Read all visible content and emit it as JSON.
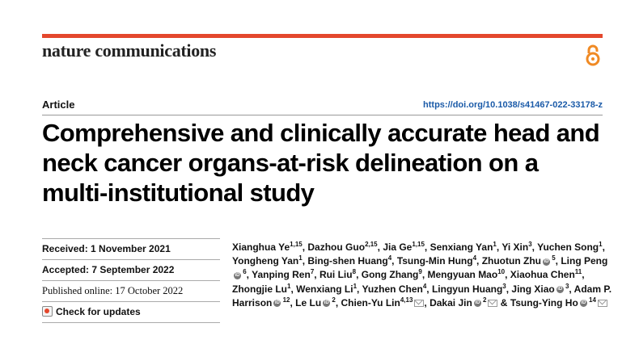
{
  "journal": "nature communications",
  "article_type": "Article",
  "doi": "https://doi.org/10.1038/s41467-022-33178-z",
  "title": "Comprehensive and clinically accurate head and neck cancer organs-at-risk delineation on a multi-institutional study",
  "meta": {
    "received": "Received: 1 November 2021",
    "accepted": "Accepted: 7 September 2022",
    "published": "Published online: 17 October 2022",
    "check_updates": "Check for updates"
  },
  "authors": [
    {
      "name": "Xianghua Ye",
      "sup": "1,15"
    },
    {
      "name": "Dazhou Guo",
      "sup": "2,15"
    },
    {
      "name": "Jia Ge",
      "sup": "1,15"
    },
    {
      "name": "Senxiang Yan",
      "sup": "1"
    },
    {
      "name": "Yi Xin",
      "sup": "3"
    },
    {
      "name": "Yuchen Song",
      "sup": "1"
    },
    {
      "name": "Yongheng Yan",
      "sup": "1"
    },
    {
      "name": "Bing-shen Huang",
      "sup": "4"
    },
    {
      "name": "Tsung-Min Hung",
      "sup": "4"
    },
    {
      "name": "Zhuotun Zhu",
      "sup": "5",
      "orcid": true
    },
    {
      "name": "Ling Peng",
      "sup": "6",
      "orcid": true
    },
    {
      "name": "Yanping Ren",
      "sup": "7"
    },
    {
      "name": "Rui Liu",
      "sup": "8"
    },
    {
      "name": "Gong Zhang",
      "sup": "9"
    },
    {
      "name": "Mengyuan Mao",
      "sup": "10"
    },
    {
      "name": "Xiaohua Chen",
      "sup": "11"
    },
    {
      "name": "Zhongjie Lu",
      "sup": "1"
    },
    {
      "name": "Wenxiang Li",
      "sup": "1"
    },
    {
      "name": "Yuzhen Chen",
      "sup": "4"
    },
    {
      "name": "Lingyun Huang",
      "sup": "3"
    },
    {
      "name": "Jing Xiao",
      "sup": "3",
      "orcid": true
    },
    {
      "name": "Adam P. Harrison",
      "sup": "12",
      "orcid": true
    },
    {
      "name": "Le Lu",
      "sup": "2",
      "orcid": true
    },
    {
      "name": "Chien-Yu Lin",
      "sup": "4,13",
      "mail": true
    },
    {
      "name": "Dakai Jin",
      "sup": "2",
      "orcid": true,
      "mail": true
    },
    {
      "name": "Tsung-Ying Ho",
      "sup": "14",
      "orcid": true,
      "mail": true
    }
  ],
  "author_separator": ", ",
  "last_separator": " & "
}
